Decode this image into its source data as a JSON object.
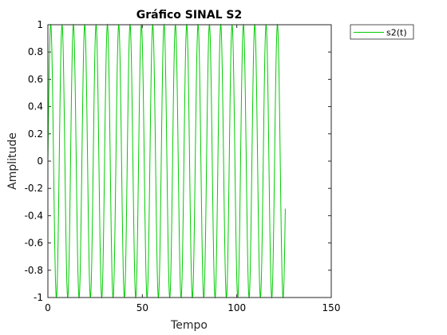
{
  "chart_data": {
    "type": "line",
    "title": "Gráfico SINAL S2",
    "xlabel": "Tempo",
    "ylabel": "Amplitude",
    "xlim": [
      0,
      150
    ],
    "ylim": [
      -1,
      1
    ],
    "xticks": [
      0,
      50,
      100,
      150
    ],
    "yticks": [
      -1,
      -0.8,
      -0.6,
      -0.4,
      -0.2,
      0,
      0.2,
      0.4,
      0.6,
      0.8,
      1
    ],
    "ytick_labels": [
      "-1",
      "-0.8",
      "-0.6",
      "-0.4",
      "-0.2",
      "0",
      "0.2",
      "0.4",
      "0.6",
      "0.8",
      "1"
    ],
    "xtick_labels": [
      "0",
      "50",
      "100",
      "150"
    ],
    "legend_position": "outside-top-right",
    "grid": false,
    "series": [
      {
        "name": "s2(t)",
        "color": "#00cc00",
        "function": "sin",
        "x_start": 0,
        "x_end": 125.66,
        "period": 6.0,
        "amplitude": 1
      }
    ]
  }
}
